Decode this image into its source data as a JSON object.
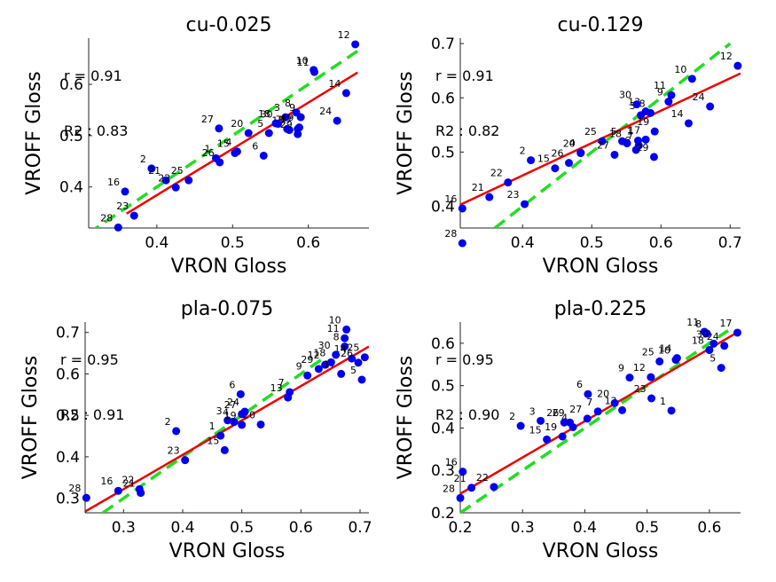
{
  "figure": {
    "type": "scatter-grid"
  },
  "chart_data": [
    {
      "type": "scatter",
      "title": "cu-0.025",
      "xlabel": "VRON Gloss",
      "ylabel": "VROFF Gloss",
      "xlim": [
        0.31,
        0.68
      ],
      "ylim": [
        0.32,
        0.69
      ],
      "xticks": [
        0.4,
        0.5,
        0.6
      ],
      "yticks": [
        0.4,
        0.5,
        0.6
      ],
      "stat_r": "r = 0.91",
      "stat_r2": "R2 : 0.83",
      "fit_line": {
        "x0": 0.36,
        "y0": 0.348,
        "x1": 0.665,
        "y1": 0.623
      },
      "identity_line": {
        "x0": 0.31,
        "x1": 0.665
      },
      "points": [
        {
          "label": "1",
          "x": 0.478,
          "y": 0.456
        },
        {
          "label": "2",
          "x": 0.393,
          "y": 0.436
        },
        {
          "label": "3",
          "x": 0.57,
          "y": 0.536
        },
        {
          "label": "4",
          "x": 0.506,
          "y": 0.469
        },
        {
          "label": "5",
          "x": 0.548,
          "y": 0.505
        },
        {
          "label": "6",
          "x": 0.541,
          "y": 0.461
        },
        {
          "label": "7",
          "x": 0.572,
          "y": 0.513
        },
        {
          "label": "8",
          "x": 0.584,
          "y": 0.545
        },
        {
          "label": "9",
          "x": 0.59,
          "y": 0.536
        },
        {
          "label": "10",
          "x": 0.607,
          "y": 0.628
        },
        {
          "label": "11",
          "x": 0.608,
          "y": 0.624
        },
        {
          "label": "12",
          "x": 0.662,
          "y": 0.678
        },
        {
          "label": "13",
          "x": 0.575,
          "y": 0.511
        },
        {
          "label": "14",
          "x": 0.65,
          "y": 0.583
        },
        {
          "label": "15",
          "x": 0.503,
          "y": 0.466
        },
        {
          "label": "16",
          "x": 0.358,
          "y": 0.391
        },
        {
          "label": "17",
          "x": 0.586,
          "y": 0.513
        },
        {
          "label": "18",
          "x": 0.557,
          "y": 0.524
        },
        {
          "label": "19",
          "x": 0.588,
          "y": 0.516
        },
        {
          "label": "20",
          "x": 0.521,
          "y": 0.505
        },
        {
          "label": "21",
          "x": 0.412,
          "y": 0.413
        },
        {
          "label": "22",
          "x": 0.425,
          "y": 0.399
        },
        {
          "label": "23",
          "x": 0.37,
          "y": 0.344
        },
        {
          "label": "24",
          "x": 0.638,
          "y": 0.529
        },
        {
          "label": "25",
          "x": 0.442,
          "y": 0.413
        },
        {
          "label": "26",
          "x": 0.483,
          "y": 0.448
        },
        {
          "label": "27",
          "x": 0.482,
          "y": 0.514
        },
        {
          "label": "28",
          "x": 0.349,
          "y": 0.321
        },
        {
          "label": "29",
          "x": 0.586,
          "y": 0.503
        },
        {
          "label": "30",
          "x": 0.56,
          "y": 0.523
        }
      ]
    },
    {
      "type": "scatter",
      "title": "cu-0.129",
      "xlabel": "VRON Gloss",
      "ylabel": "VROFF Gloss",
      "xlim": [
        0.31,
        0.715
      ],
      "ylim": [
        0.36,
        0.71
      ],
      "xticks": [
        0.4,
        0.5,
        0.6,
        0.7
      ],
      "yticks": [
        0.4,
        0.5,
        0.6,
        0.7
      ],
      "stat_r": "r = 0.91",
      "stat_r2": "R2 : 0.82",
      "fit_line": {
        "x0": 0.31,
        "y0": 0.403,
        "x1": 0.715,
        "y1": 0.645
      },
      "identity_line": {
        "x0": 0.36,
        "x1": 0.7
      },
      "points": [
        {
          "label": "1",
          "x": 0.567,
          "y": 0.521
        },
        {
          "label": "2",
          "x": 0.412,
          "y": 0.485
        },
        {
          "label": "3",
          "x": 0.571,
          "y": 0.568
        },
        {
          "label": "4",
          "x": 0.484,
          "y": 0.499
        },
        {
          "label": "5",
          "x": 0.544,
          "y": 0.52
        },
        {
          "label": "6",
          "x": 0.564,
          "y": 0.504
        },
        {
          "label": "7",
          "x": 0.568,
          "y": 0.512
        },
        {
          "label": "8",
          "x": 0.585,
          "y": 0.572
        },
        {
          "label": "9",
          "x": 0.611,
          "y": 0.593
        },
        {
          "label": "10",
          "x": 0.645,
          "y": 0.635
        },
        {
          "label": "11",
          "x": 0.615,
          "y": 0.605
        },
        {
          "label": "12",
          "x": 0.711,
          "y": 0.659
        },
        {
          "label": "13",
          "x": 0.578,
          "y": 0.575
        },
        {
          "label": "14",
          "x": 0.64,
          "y": 0.553
        },
        {
          "label": "15",
          "x": 0.447,
          "y": 0.47
        },
        {
          "label": "16",
          "x": 0.313,
          "y": 0.396
        },
        {
          "label": "17",
          "x": 0.578,
          "y": 0.523
        },
        {
          "label": "18",
          "x": 0.551,
          "y": 0.516
        },
        {
          "label": "19",
          "x": 0.591,
          "y": 0.538
        },
        {
          "label": "20",
          "x": 0.484,
          "y": 0.498
        },
        {
          "label": "21",
          "x": 0.352,
          "y": 0.417
        },
        {
          "label": "22",
          "x": 0.379,
          "y": 0.444
        },
        {
          "label": "23",
          "x": 0.403,
          "y": 0.404
        },
        {
          "label": "24",
          "x": 0.671,
          "y": 0.584
        },
        {
          "label": "25",
          "x": 0.515,
          "y": 0.52
        },
        {
          "label": "26",
          "x": 0.467,
          "y": 0.48
        },
        {
          "label": "27",
          "x": 0.533,
          "y": 0.495
        },
        {
          "label": "28",
          "x": 0.313,
          "y": 0.332
        },
        {
          "label": "29",
          "x": 0.59,
          "y": 0.491
        },
        {
          "label": "30",
          "x": 0.565,
          "y": 0.588
        }
      ]
    },
    {
      "type": "scatter",
      "title": "pla-0.075",
      "xlabel": "VRON Gloss",
      "ylabel": "VROFF Gloss",
      "xlim": [
        0.235,
        0.715
      ],
      "ylim": [
        0.265,
        0.725
      ],
      "xticks": [
        0.3,
        0.4,
        0.5,
        0.6,
        0.7
      ],
      "yticks": [
        0.3,
        0.4,
        0.5,
        0.6,
        0.7
      ],
      "stat_r": "r = 0.95",
      "stat_r2": "R2 : 0.91",
      "fit_line": {
        "x0": 0.235,
        "y0": 0.268,
        "x1": 0.715,
        "y1": 0.666
      },
      "identity_line": {
        "x0": 0.265,
        "x1": 0.64
      },
      "points": [
        {
          "label": "1",
          "x": 0.464,
          "y": 0.451
        },
        {
          "label": "2",
          "x": 0.389,
          "y": 0.462
        },
        {
          "label": "3",
          "x": 0.476,
          "y": 0.488
        },
        {
          "label": "4",
          "x": 0.487,
          "y": 0.484
        },
        {
          "label": "5",
          "x": 0.703,
          "y": 0.586
        },
        {
          "label": "6",
          "x": 0.498,
          "y": 0.551
        },
        {
          "label": "7",
          "x": 0.581,
          "y": 0.556
        },
        {
          "label": "8",
          "x": 0.674,
          "y": 0.666
        },
        {
          "label": "9",
          "x": 0.611,
          "y": 0.596
        },
        {
          "label": "10",
          "x": 0.677,
          "y": 0.707
        },
        {
          "label": "11",
          "x": 0.674,
          "y": 0.686
        },
        {
          "label": "12",
          "x": 0.641,
          "y": 0.622
        },
        {
          "label": "13",
          "x": 0.578,
          "y": 0.543
        },
        {
          "label": "14",
          "x": 0.686,
          "y": 0.637
        },
        {
          "label": "15",
          "x": 0.471,
          "y": 0.416
        },
        {
          "label": "16",
          "x": 0.291,
          "y": 0.318
        },
        {
          "label": "17",
          "x": 0.668,
          "y": 0.6
        },
        {
          "label": "18",
          "x": 0.651,
          "y": 0.628
        },
        {
          "label": "19",
          "x": 0.5,
          "y": 0.477
        },
        {
          "label": "20",
          "x": 0.532,
          "y": 0.478
        },
        {
          "label": "21",
          "x": 0.329,
          "y": 0.313
        },
        {
          "label": "22",
          "x": 0.327,
          "y": 0.322
        },
        {
          "label": "23",
          "x": 0.404,
          "y": 0.392
        },
        {
          "label": "24",
          "x": 0.505,
          "y": 0.509
        },
        {
          "label": "25",
          "x": 0.708,
          "y": 0.64
        },
        {
          "label": "26",
          "x": 0.697,
          "y": 0.627
        },
        {
          "label": "27",
          "x": 0.5,
          "y": 0.503
        },
        {
          "label": "28",
          "x": 0.237,
          "y": 0.301
        },
        {
          "label": "29",
          "x": 0.63,
          "y": 0.612
        },
        {
          "label": "30",
          "x": 0.659,
          "y": 0.646
        }
      ]
    },
    {
      "type": "scatter",
      "title": "pla-0.225",
      "xlabel": "VRON Gloss",
      "ylabel": "VROFF Gloss",
      "xlim": [
        0.2,
        0.65
      ],
      "ylim": [
        0.2,
        0.65
      ],
      "xticks": [
        0.2,
        0.3,
        0.4,
        0.5,
        0.6
      ],
      "yticks": [
        0.2,
        0.3,
        0.4,
        0.5,
        0.6
      ],
      "stat_r": "r = 0.95",
      "stat_r2": "R2 : 0.90",
      "fit_line": {
        "x0": 0.2,
        "y0": 0.245,
        "x1": 0.65,
        "y1": 0.63
      },
      "identity_line": {
        "x0": 0.2,
        "x1": 0.63
      },
      "points": [
        {
          "label": "1",
          "x": 0.539,
          "y": 0.441
        },
        {
          "label": "2",
          "x": 0.297,
          "y": 0.405
        },
        {
          "label": "3",
          "x": 0.329,
          "y": 0.417
        },
        {
          "label": "4",
          "x": 0.381,
          "y": 0.402
        },
        {
          "label": "5",
          "x": 0.619,
          "y": 0.542
        },
        {
          "label": "6",
          "x": 0.405,
          "y": 0.48
        },
        {
          "label": "7",
          "x": 0.421,
          "y": 0.439
        },
        {
          "label": "8",
          "x": 0.596,
          "y": 0.623
        },
        {
          "label": "9",
          "x": 0.472,
          "y": 0.519
        },
        {
          "label": "10",
          "x": 0.546,
          "y": 0.561
        },
        {
          "label": "11",
          "x": 0.592,
          "y": 0.627
        },
        {
          "label": "12",
          "x": 0.506,
          "y": 0.52
        },
        {
          "label": "13",
          "x": 0.46,
          "y": 0.442
        },
        {
          "label": "14",
          "x": 0.548,
          "y": 0.565
        },
        {
          "label": "15",
          "x": 0.339,
          "y": 0.373
        },
        {
          "label": "16",
          "x": 0.204,
          "y": 0.297
        },
        {
          "label": "17",
          "x": 0.645,
          "y": 0.625
        },
        {
          "label": "18",
          "x": 0.6,
          "y": 0.584
        },
        {
          "label": "19",
          "x": 0.364,
          "y": 0.38
        },
        {
          "label": "20",
          "x": 0.448,
          "y": 0.459
        },
        {
          "label": "21",
          "x": 0.218,
          "y": 0.259
        },
        {
          "label": "22",
          "x": 0.254,
          "y": 0.261
        },
        {
          "label": "23",
          "x": 0.507,
          "y": 0.47
        },
        {
          "label": "24",
          "x": 0.624,
          "y": 0.594
        },
        {
          "label": "25",
          "x": 0.52,
          "y": 0.557
        },
        {
          "label": "26",
          "x": 0.367,
          "y": 0.413
        },
        {
          "label": "27",
          "x": 0.404,
          "y": 0.422
        },
        {
          "label": "28",
          "x": 0.2,
          "y": 0.235
        },
        {
          "label": "29",
          "x": 0.376,
          "y": 0.413
        },
        {
          "label": "30",
          "x": 0.607,
          "y": 0.599
        }
      ]
    }
  ],
  "colors": {
    "points": "#0000ee",
    "fit_line": "#ee0000",
    "identity_line": "#22dd22",
    "axes": "#262626",
    "text": "#000000"
  }
}
